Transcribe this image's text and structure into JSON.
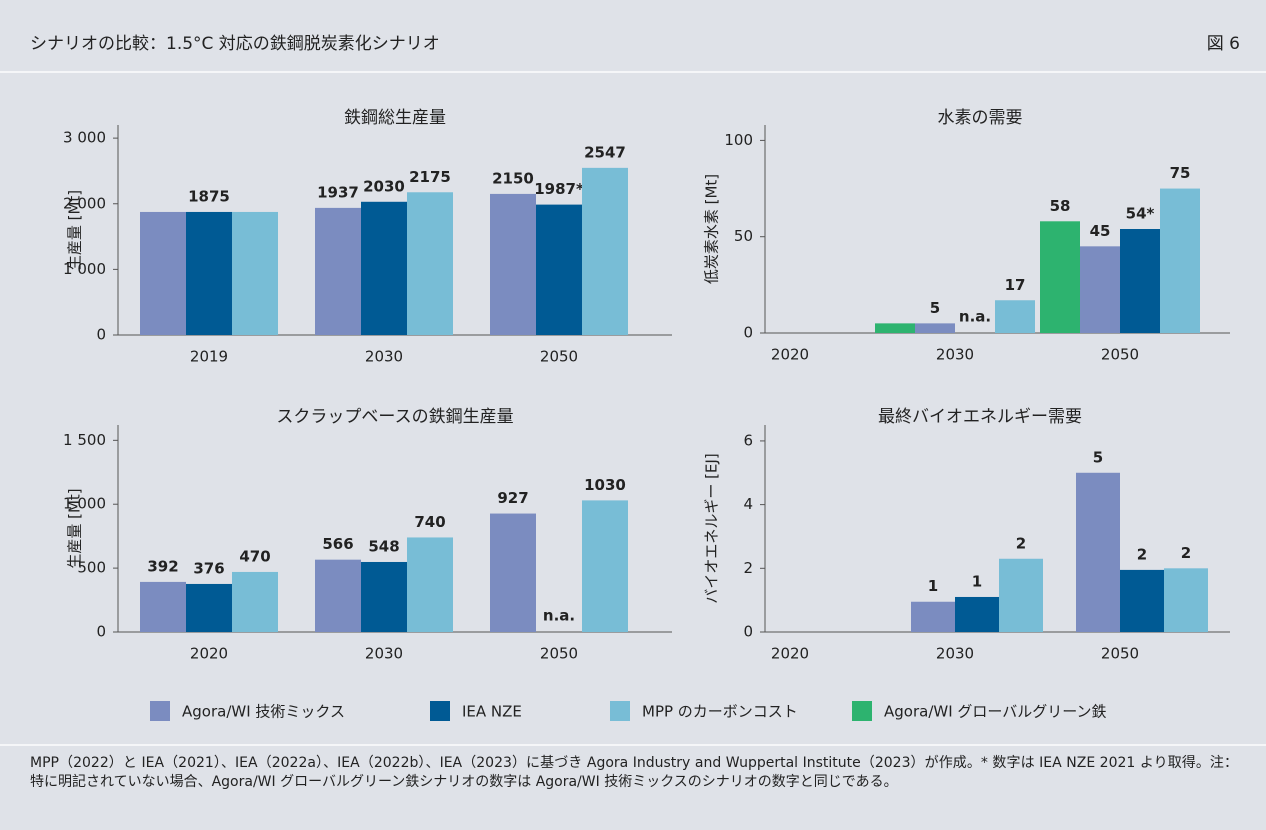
{
  "header": {
    "title": "シナリオの比較：1.5°C 対応の鉄鋼脱炭素化シナリオ",
    "figure": "図 6"
  },
  "chart_data": [
    {
      "type": "bar",
      "title": "鉄鋼総生産量",
      "ylabel": "生産量 [Mt]",
      "categories": [
        "2019",
        "2030",
        "2050"
      ],
      "ylim": [
        0,
        3200
      ],
      "yticks": [
        0,
        {
          "value": 1000,
          "label": "1 000"
        },
        {
          "value": 2000,
          "label": "2 000"
        },
        {
          "value": 3000,
          "label": "3 000"
        }
      ],
      "series": [
        {
          "color": "#7b8cc0",
          "values": [
            1875,
            1937,
            2150
          ],
          "value_labels": [
            null,
            "1937",
            "2150"
          ]
        },
        {
          "color": "#005a94",
          "values": [
            1875,
            2030,
            1987
          ],
          "value_labels": [
            "1875",
            "2030",
            "1987*"
          ]
        },
        {
          "color": "#78bdd6",
          "values": [
            1875,
            2175,
            2547
          ],
          "value_labels": [
            null,
            "2175",
            "2547"
          ]
        }
      ]
    },
    {
      "type": "bar",
      "title": "水素の需要",
      "ylabel": "低炭素水素 [Mt]",
      "categories": [
        "2020",
        "2030",
        "2050"
      ],
      "ylim": [
        0,
        108
      ],
      "yticks": [
        0,
        50,
        100
      ],
      "series": [
        {
          "name": "Agora/WI グローバルグリーン鉄",
          "color": "#2db36f",
          "values": [
            null,
            5,
            58
          ],
          "value_labels": [
            null,
            null,
            "58"
          ]
        },
        {
          "name": "Agora/WI 技術ミックス",
          "color": "#7b8cc0",
          "values": [
            null,
            5,
            45
          ],
          "value_labels": [
            null,
            "5",
            "45"
          ]
        },
        {
          "name": "IEA NZE",
          "color": "#005a94",
          "values": [
            null,
            null,
            54
          ],
          "value_labels": [
            null,
            "n.a.",
            "54*"
          ]
        },
        {
          "name": "MPP のカーボンコスト",
          "color": "#78bdd6",
          "values": [
            null,
            17,
            75
          ],
          "value_labels": [
            null,
            "17",
            "75"
          ]
        }
      ]
    },
    {
      "type": "bar",
      "title": "スクラップベースの鉄鋼生産量",
      "ylabel": "生産量 [Mt]",
      "categories": [
        "2020",
        "2030",
        "2050"
      ],
      "ylim": [
        0,
        1620
      ],
      "yticks": [
        0,
        500,
        {
          "value": 1000,
          "label": "1 000"
        },
        {
          "value": 1500,
          "label": "1 500"
        }
      ],
      "series": [
        {
          "color": "#7b8cc0",
          "values": [
            392,
            566,
            927
          ],
          "value_labels": [
            "392",
            "566",
            "927"
          ]
        },
        {
          "color": "#005a94",
          "values": [
            376,
            548,
            null
          ],
          "value_labels": [
            "376",
            "548",
            "n.a."
          ]
        },
        {
          "color": "#78bdd6",
          "values": [
            470,
            740,
            1030
          ],
          "value_labels": [
            "470",
            "740",
            "1030"
          ]
        }
      ]
    },
    {
      "type": "bar",
      "title": "最終バイオエネルギー需要",
      "ylabel": "バイオエネルギー [EJ]",
      "categories": [
        "2020",
        "2030",
        "2050"
      ],
      "ylim": [
        0,
        6.5
      ],
      "yticks": [
        0,
        2,
        4,
        6
      ],
      "series": [
        {
          "color": "#7b8cc0",
          "values": [
            null,
            0.95,
            5
          ],
          "value_labels": [
            null,
            "1",
            "5"
          ]
        },
        {
          "color": "#005a94",
          "values": [
            null,
            1.1,
            1.95
          ],
          "value_labels": [
            null,
            "1",
            "2"
          ]
        },
        {
          "color": "#78bdd6",
          "values": [
            null,
            2.3,
            2
          ],
          "value_labels": [
            null,
            "2",
            "2"
          ]
        }
      ]
    }
  ],
  "footer": "MPP（2022）と IEA（2021）、IEA（2022a）、IEA（2022b）、IEA（2023）に基づき Agora Industry and Wuppertal Institute（2023）が作成。* 数字は IEA NZE 2021 より取得。注：特に明記されていない場合、Agora/WI グローバルグリーン鉄シナリオの数字は Agora/WI 技術ミックスのシナリオの数字と同じである。"
}
